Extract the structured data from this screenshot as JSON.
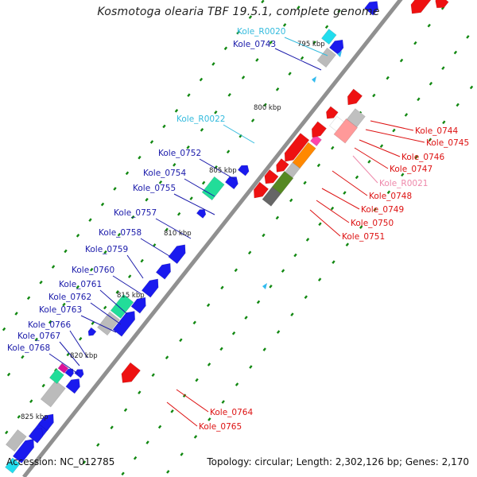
{
  "header": {
    "title": "Kosmotoga olearia TBF 19.5.1, complete genome"
  },
  "footer": {
    "accession": "Accession: NC_012785",
    "summary": "Topology: circular; Length: 2,302,126 bp; Genes: 2,170"
  },
  "colors": {
    "blue_label": "#1a1aaa",
    "cyan_label": "#33bbdd",
    "red_label": "#dd1111",
    "pink_label": "#ee88aa",
    "backbone": "#888888",
    "tick": "#118811"
  },
  "ticks": [
    "795 kbp",
    "800 kbp",
    "805 kbp",
    "810 kbp",
    "815 kbp",
    "820 kbp",
    "825 kbp"
  ],
  "gene_labels": [
    {
      "text": "Kole_R0020",
      "color": "cyan"
    },
    {
      "text": "Kole_0743",
      "color": "blue"
    },
    {
      "text": "Kole_R0022",
      "color": "cyan"
    },
    {
      "text": "Kole_0752",
      "color": "blue"
    },
    {
      "text": "Kole_0754",
      "color": "blue"
    },
    {
      "text": "Kole_0755",
      "color": "blue"
    },
    {
      "text": "Kole_0757",
      "color": "blue"
    },
    {
      "text": "Kole_0758",
      "color": "blue"
    },
    {
      "text": "Kole_0759",
      "color": "blue"
    },
    {
      "text": "Kole_0760",
      "color": "blue"
    },
    {
      "text": "Kole_0761",
      "color": "blue"
    },
    {
      "text": "Kole_0762",
      "color": "blue"
    },
    {
      "text": "Kole_0763",
      "color": "blue"
    },
    {
      "text": "Kole_0766",
      "color": "blue"
    },
    {
      "text": "Kole_0767",
      "color": "blue"
    },
    {
      "text": "Kole_0768",
      "color": "blue"
    },
    {
      "text": "Kole_0744",
      "color": "red"
    },
    {
      "text": "Kole_0745",
      "color": "red"
    },
    {
      "text": "Kole_0746",
      "color": "red"
    },
    {
      "text": "Kole_0747",
      "color": "red"
    },
    {
      "text": "Kole_R0021",
      "color": "pink"
    },
    {
      "text": "Kole_0748",
      "color": "red"
    },
    {
      "text": "Kole_0749",
      "color": "red"
    },
    {
      "text": "Kole_0750",
      "color": "red"
    },
    {
      "text": "Kole_0751",
      "color": "red"
    },
    {
      "text": "Kole_0764",
      "color": "red"
    },
    {
      "text": "Kole_0765",
      "color": "red"
    }
  ]
}
